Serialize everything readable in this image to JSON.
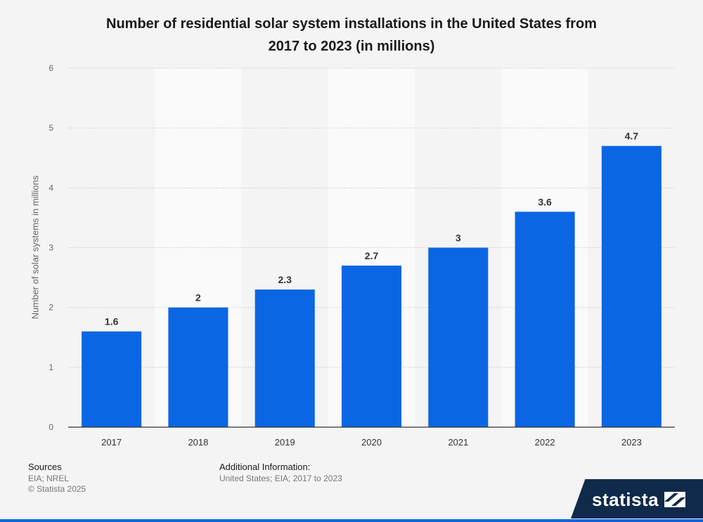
{
  "chart_data": {
    "type": "bar",
    "title_line1": "Number of residential solar system installations in the United States from",
    "title_line2": "2017 to 2023 (in millions)",
    "xlabel": "",
    "ylabel": "Number of solar systems in millions",
    "categories": [
      "2017",
      "2018",
      "2019",
      "2020",
      "2021",
      "2022",
      "2023"
    ],
    "values": [
      1.6,
      2,
      2.3,
      2.7,
      3,
      3.6,
      4.7
    ],
    "data_labels": [
      "1.6",
      "2",
      "2.3",
      "2.7",
      "3",
      "3.6",
      "4.7"
    ],
    "ylim": [
      0,
      6
    ],
    "yticks": [
      0,
      1,
      2,
      3,
      4,
      5,
      6
    ],
    "grid": true,
    "bar_color": "#0b66e4"
  },
  "footer": {
    "sources_heading": "Sources",
    "sources_text": "EIA; NREL",
    "copyright": "© Statista 2025",
    "additional_heading": "Additional Information:",
    "additional_text": "United States; EIA; 2017 to 2023"
  },
  "brand": {
    "name": "statista",
    "logo_icon": "statista-flag-icon",
    "logo_bg": "#0f2a4a"
  }
}
